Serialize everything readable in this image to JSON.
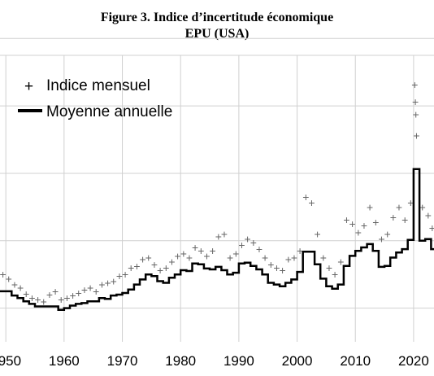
{
  "chart_data": {
    "type": "line",
    "title": "Figure 3. Indice d’incertitude économique",
    "subtitle": "EPU (USA)",
    "xlabel": "",
    "ylabel": "",
    "xlim": [
      1949,
      2023.5
    ],
    "ylim": [
      40,
      380
    ],
    "x_ticks": [
      "1950",
      "1960",
      "1970",
      "1980",
      "1990",
      "2000",
      "2010",
      "2020"
    ],
    "grid": true,
    "legend": {
      "placement": "top-left",
      "entries": [
        "Indice mensuel",
        "Moyenne annuelle"
      ]
    },
    "series": [
      {
        "name": "Moyenne annuelle",
        "style": "step",
        "x": [
          1949,
          1950,
          1951,
          1952,
          1953,
          1954,
          1955,
          1956,
          1957,
          1958,
          1959,
          1960,
          1961,
          1962,
          1963,
          1964,
          1965,
          1966,
          1967,
          1968,
          1969,
          1970,
          1971,
          1972,
          1973,
          1974,
          1975,
          1976,
          1977,
          1978,
          1979,
          1980,
          1981,
          1982,
          1983,
          1984,
          1985,
          1986,
          1987,
          1988,
          1989,
          1990,
          1991,
          1992,
          1993,
          1994,
          1995,
          1996,
          1997,
          1998,
          1999,
          2000,
          2001,
          2002,
          2003,
          2004,
          2005,
          2006,
          2007,
          2008,
          2009,
          2010,
          2011,
          2012,
          2013,
          2014,
          2015,
          2016,
          2017,
          2018,
          2019,
          2020,
          2021,
          2022,
          2023
        ],
        "values": [
          100,
          100,
          95,
          92,
          88,
          85,
          82,
          82,
          82,
          82,
          78,
          80,
          83,
          85,
          86,
          88,
          88,
          92,
          91,
          95,
          96,
          98,
          102,
          108,
          114,
          120,
          118,
          112,
          110,
          116,
          120,
          125,
          124,
          133,
          132,
          127,
          126,
          129,
          125,
          120,
          122,
          133,
          134,
          130,
          126,
          120,
          110,
          108,
          106,
          110,
          114,
          123,
          147,
          147,
          132,
          115,
          106,
          103,
          108,
          130,
          142,
          148,
          152,
          156,
          148,
          129,
          130,
          140,
          146,
          150,
          161,
          245,
          160,
          162,
          150
        ]
      },
      {
        "name": "Indice mensuel",
        "style": "points",
        "x": [
          1949.5,
          1950.5,
          1951.5,
          1952.5,
          1953.5,
          1954.5,
          1955.5,
          1956.5,
          1957.5,
          1958.5,
          1959.5,
          1960.5,
          1961.5,
          1962.5,
          1963.5,
          1964.5,
          1965.5,
          1966.5,
          1967.5,
          1968.5,
          1969.5,
          1970.5,
          1971.5,
          1972.5,
          1973.5,
          1974.5,
          1975.5,
          1976.5,
          1977.5,
          1978.5,
          1979.5,
          1980.5,
          1981.5,
          1982.5,
          1983.5,
          1984.5,
          1985.5,
          1986.5,
          1987.5,
          1988.5,
          1989.5,
          1990.5,
          1991.5,
          1992.5,
          1993.5,
          1994.5,
          1995.5,
          1996.5,
          1997.5,
          1998.5,
          1999.5,
          2000.5,
          2001.5,
          2002.5,
          2003.5,
          2004.5,
          2005.5,
          2006.5,
          2007.5,
          2008.5,
          2009.5,
          2010.5,
          2011.5,
          2012.5,
          2013.5,
          2014.5,
          2015.5,
          2016.5,
          2017.5,
          2018.5,
          2019.5,
          2020.2,
          2020.3,
          2020.4,
          2020.5,
          2021.5,
          2022.5,
          2023.2
        ],
        "values": [
          120,
          115,
          108,
          104,
          97,
          92,
          90,
          88,
          96,
          100,
          90,
          92,
          95,
          98,
          102,
          104,
          100,
          108,
          110,
          112,
          118,
          120,
          128,
          130,
          138,
          140,
          132,
          125,
          128,
          135,
          142,
          145,
          140,
          152,
          148,
          142,
          148,
          165,
          168,
          140,
          145,
          155,
          162,
          158,
          150,
          140,
          132,
          128,
          125,
          138,
          140,
          148,
          212,
          205,
          168,
          140,
          128,
          120,
          135,
          185,
          180,
          170,
          178,
          200,
          182,
          162,
          168,
          188,
          200,
          185,
          205,
          345,
          325,
          310,
          285,
          200,
          190,
          175
        ]
      }
    ]
  }
}
